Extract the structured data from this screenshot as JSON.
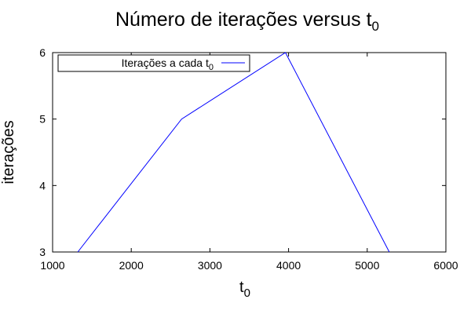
{
  "chart_data": {
    "type": "line",
    "title": {
      "main": "Número de iterações versus t",
      "sub": "0"
    },
    "xlabel": {
      "main": "t",
      "sub": "0"
    },
    "ylabel": "iterações",
    "xlim": [
      1000,
      6000
    ],
    "ylim": [
      3,
      6
    ],
    "xticks": [
      1000,
      2000,
      3000,
      4000,
      5000,
      6000
    ],
    "yticks": [
      3,
      4,
      5,
      6
    ],
    "legend": {
      "main": "Iterações a cada t",
      "sub": "0",
      "placement": "top-left"
    },
    "grid": false,
    "series": [
      {
        "name": "Iterações a cada t0",
        "color": "#0000ff",
        "x": [
          1320,
          2640,
          3960,
          5280
        ],
        "y": [
          3,
          5,
          6,
          3
        ]
      }
    ]
  }
}
